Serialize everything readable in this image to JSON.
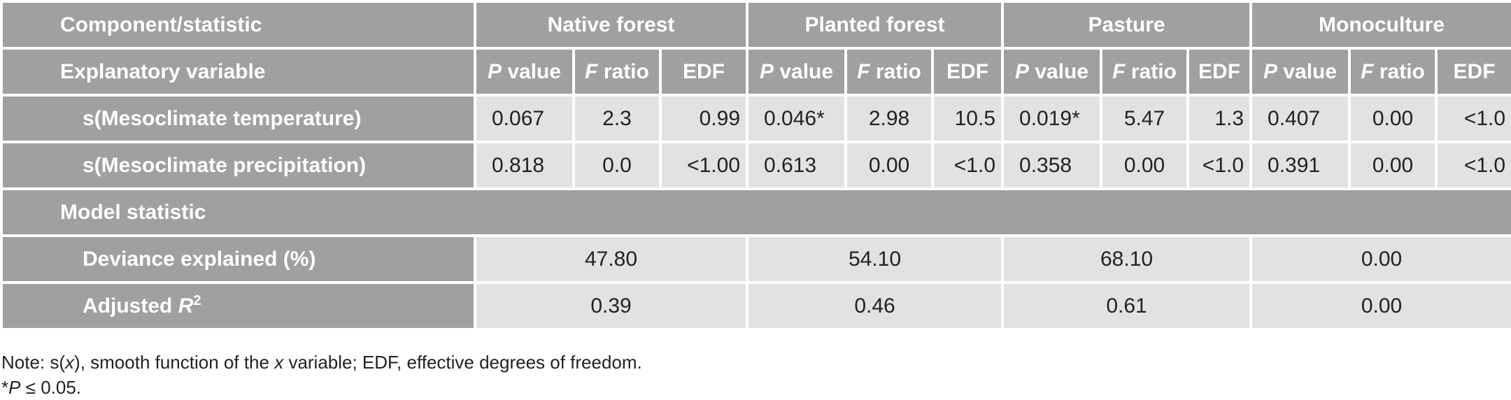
{
  "table": {
    "header": {
      "component_label": "Component/statistic",
      "groups": [
        "Native forest",
        "Planted forest",
        "Pasture",
        "Monoculture"
      ],
      "explanatory_label": "Explanatory variable",
      "p_letter": "P",
      "p_rest": "value",
      "f_letter": "F",
      "f_rest": "ratio",
      "edf": "EDF"
    },
    "rows": [
      {
        "label": "s(Mesoclimate temperature)",
        "cells": [
          "0.067",
          "2.3",
          "0.99",
          "0.046*",
          "2.98",
          "10.5",
          "0.019*",
          "5.47",
          "1.3",
          "0.407",
          "0.00",
          "<1.0"
        ]
      },
      {
        "label": "s(Mesoclimate precipitation)",
        "cells": [
          "0.818",
          "0.0",
          "<1.00",
          "0.613",
          "0.00",
          "<1.0",
          "0.358",
          "0.00",
          "<1.0",
          "0.391",
          "0.00",
          "<1.0"
        ]
      }
    ],
    "model_statistic_label": "Model statistic",
    "model_rows": [
      {
        "label": "Deviance explained (%)",
        "values": [
          "47.80",
          "54.10",
          "68.10",
          "0.00"
        ]
      },
      {
        "label_prefix": "Adjusted",
        "label_var": "R",
        "label_sup": "2",
        "values": [
          "0.39",
          "0.46",
          "0.61",
          "0.00"
        ]
      }
    ]
  },
  "notes": {
    "line1_a": "Note: s(",
    "line1_x": "x",
    "line1_b": "), smooth function of the",
    "line1_x2": "x",
    "line1_c": "variable; EDF, effective degrees of freedom.",
    "line2_a": "*",
    "line2_p": "P",
    "line2_b": "≤ 0.05."
  }
}
